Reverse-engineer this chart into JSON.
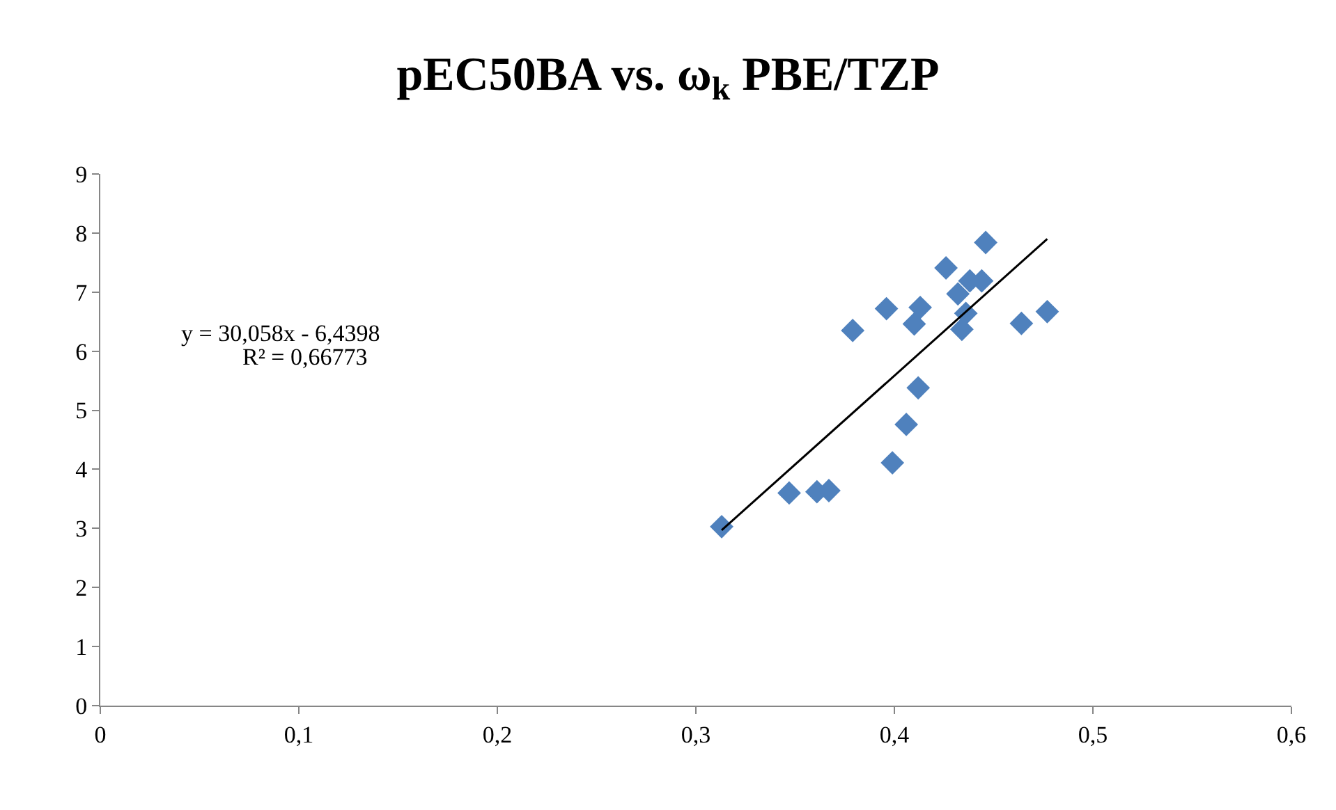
{
  "chart_data": {
    "type": "scatter",
    "title": "pEC50BA vs. ω$_{k}$ PBE/TZP",
    "series": [
      {
        "color": "#4f81bd",
        "marker": "diamond",
        "x": [
          0.313,
          0.347,
          0.361,
          0.367,
          0.399,
          0.406,
          0.412,
          0.379,
          0.396,
          0.41,
          0.413,
          0.426,
          0.446,
          0.432,
          0.438,
          0.444,
          0.434,
          0.436,
          0.464,
          0.477
        ],
        "values": [
          3.03,
          3.6,
          3.62,
          3.64,
          4.11,
          4.76,
          5.38,
          6.35,
          6.72,
          6.46,
          6.74,
          7.41,
          7.84,
          6.97,
          7.19,
          7.19,
          6.37,
          6.64,
          6.47,
          6.67
        ]
      },
      {
        "type": "line",
        "color": "#000000",
        "marker": "none",
        "x": [
          0.313,
          0.477
        ],
        "values": [
          2.97,
          7.9
        ]
      }
    ],
    "annotations": [
      "y = 30,058x - 6,4398",
      "R² = 0,66773"
    ],
    "xlim": [
      0,
      0.6
    ],
    "xticks": [
      0,
      {
        "value": 0.1,
        "label": "0,1"
      },
      {
        "value": 0.2,
        "label": "0,2"
      },
      {
        "value": 0.3,
        "label": "0,3"
      },
      {
        "value": 0.4,
        "label": "0,4"
      },
      {
        "value": 0.5,
        "label": "0,5"
      },
      {
        "value": 0.6,
        "label": "0,6"
      }
    ],
    "ylim": [
      0,
      9
    ],
    "yticks": [
      0,
      1,
      2,
      3,
      4,
      5,
      6,
      7,
      8,
      9
    ]
  }
}
